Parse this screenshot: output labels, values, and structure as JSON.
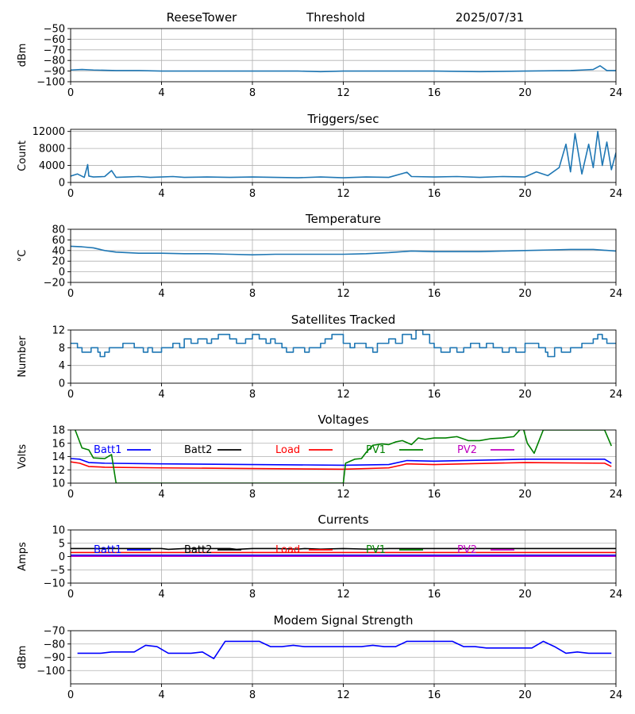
{
  "header": {
    "station": "ReeseTower",
    "title": "Threshold",
    "date": "2025/07/31"
  },
  "chart_data": [
    {
      "type": "line",
      "title": "",
      "ylabel": "dBm",
      "xlim": [
        0,
        24
      ],
      "ylim": [
        -100,
        -50
      ],
      "xticks": [
        "0",
        "4",
        "8",
        "12",
        "16",
        "20",
        "24"
      ],
      "yticks": [
        "-100",
        "-90",
        "-80",
        "-70",
        "-60",
        "-50"
      ],
      "grid": true,
      "series": [
        {
          "color": "#1f77b4",
          "x": [
            0,
            0.5,
            1,
            2,
            3,
            4,
            6,
            8,
            10,
            11,
            12,
            14,
            16,
            18,
            20,
            22,
            22.5,
            23,
            23.3,
            23.6,
            24
          ],
          "y": [
            -89,
            -88.5,
            -89,
            -89.5,
            -89.5,
            -90,
            -90,
            -90,
            -90,
            -90.5,
            -90,
            -90,
            -90,
            -90.5,
            -90,
            -89.5,
            -89,
            -88.5,
            -85,
            -89.5,
            -89.5
          ]
        }
      ]
    },
    {
      "type": "line",
      "title": "Triggers/sec",
      "ylabel": "Count",
      "xlim": [
        0,
        24
      ],
      "ylim": [
        0,
        12500
      ],
      "xticks": [
        "0",
        "4",
        "8",
        "12",
        "16",
        "20",
        "24"
      ],
      "yticks": [
        "0",
        "4000",
        "8000",
        "12000"
      ],
      "grid": true,
      "series": [
        {
          "color": "#1f77b4",
          "x": [
            0,
            0.3,
            0.6,
            0.75,
            0.8,
            1,
            1.5,
            1.8,
            2,
            2.5,
            3,
            3.5,
            4,
            4.5,
            5,
            6,
            7,
            8,
            9,
            10,
            11,
            12,
            13,
            14,
            14.8,
            15,
            16,
            17,
            18,
            19,
            20,
            20.5,
            21,
            21.5,
            21.8,
            22,
            22.2,
            22.5,
            22.8,
            23,
            23.2,
            23.4,
            23.6,
            23.8,
            24
          ],
          "y": [
            1500,
            2000,
            1200,
            4200,
            1500,
            1300,
            1400,
            2800,
            1200,
            1300,
            1400,
            1200,
            1300,
            1400,
            1200,
            1300,
            1200,
            1300,
            1200,
            1100,
            1300,
            1100,
            1300,
            1200,
            2400,
            1400,
            1300,
            1400,
            1200,
            1400,
            1300,
            2500,
            1600,
            3500,
            9000,
            2500,
            11500,
            2000,
            9000,
            3500,
            12000,
            4000,
            9500,
            3000,
            7000
          ]
        }
      ]
    },
    {
      "type": "line",
      "title": "Temperature",
      "ylabel": "°C",
      "xlim": [
        0,
        24
      ],
      "ylim": [
        -20,
        80
      ],
      "xticks": [
        "0",
        "4",
        "8",
        "12",
        "16",
        "20",
        "24"
      ],
      "yticks": [
        "-20",
        "0",
        "20",
        "40",
        "60",
        "80"
      ],
      "grid": true,
      "series": [
        {
          "color": "#1f77b4",
          "x": [
            0,
            0.5,
            1,
            1.5,
            2,
            3,
            4,
            5,
            6,
            7,
            8,
            9,
            10,
            11,
            12,
            13,
            14,
            15,
            16,
            17,
            18,
            19,
            20,
            21,
            22,
            23,
            24
          ],
          "y": [
            48,
            47,
            45,
            40,
            37,
            35,
            35,
            34,
            34,
            33,
            32,
            33,
            33,
            33,
            33,
            34,
            36,
            39,
            38,
            38,
            38,
            39,
            40,
            41,
            42,
            42,
            39
          ]
        }
      ]
    },
    {
      "type": "line",
      "title": "Satellites Tracked",
      "ylabel": "Number",
      "xlim": [
        0,
        24
      ],
      "ylim": [
        0,
        12
      ],
      "xticks": [
        "0",
        "4",
        "8",
        "12",
        "16",
        "20",
        "24"
      ],
      "yticks": [
        "0",
        "4",
        "8",
        "12"
      ],
      "grid": true,
      "series": [
        {
          "color": "#1f77b4",
          "step": true,
          "x": [
            0,
            0.3,
            0.5,
            0.9,
            1.2,
            1.3,
            1.5,
            1.7,
            2,
            2.3,
            2.5,
            2.8,
            3,
            3.2,
            3.4,
            3.6,
            4,
            4.5,
            4.8,
            5,
            5.3,
            5.6,
            6,
            6.2,
            6.5,
            7,
            7.3,
            7.7,
            8,
            8.3,
            8.6,
            8.8,
            9,
            9.3,
            9.5,
            9.8,
            10,
            10.3,
            10.5,
            11,
            11.2,
            11.5,
            12,
            12.3,
            12.5,
            13,
            13.3,
            13.5,
            14,
            14.3,
            14.6,
            15,
            15.2,
            15.5,
            15.8,
            16,
            16.3,
            16.7,
            17,
            17.3,
            17.6,
            18,
            18.3,
            18.6,
            19,
            19.3,
            19.6,
            20,
            20.4,
            20.6,
            20.9,
            21,
            21.3,
            21.6,
            22,
            22.5,
            23,
            23.2,
            23.4,
            23.6,
            24
          ],
          "y": [
            9,
            8,
            7,
            8,
            7,
            6,
            7,
            8,
            8,
            9,
            9,
            8,
            8,
            7,
            8,
            7,
            8,
            9,
            8,
            10,
            9,
            10,
            9,
            10,
            11,
            10,
            9,
            10,
            11,
            10,
            9,
            10,
            9,
            8,
            7,
            8,
            8,
            7,
            8,
            9,
            10,
            11,
            9,
            8,
            9,
            8,
            7,
            9,
            10,
            9,
            11,
            10,
            12,
            11,
            9,
            8,
            7,
            8,
            7,
            8,
            9,
            8,
            9,
            8,
            7,
            8,
            7,
            9,
            9,
            8,
            7,
            6,
            8,
            7,
            8,
            9,
            10,
            11,
            10,
            9,
            9
          ]
        }
      ]
    },
    {
      "type": "line",
      "title": "Voltages",
      "ylabel": "Volts",
      "xlim": [
        0,
        24
      ],
      "ylim": [
        10,
        18
      ],
      "xticks": [
        "0",
        "4",
        "8",
        "12",
        "16",
        "20",
        "24"
      ],
      "yticks": [
        "10",
        "12",
        "14",
        "16",
        "18"
      ],
      "grid": true,
      "legend": [
        "Batt1",
        "Batt2",
        "Load",
        "PV1",
        "PV2"
      ],
      "series": [
        {
          "name": "Batt1",
          "color": "#0000ff",
          "x": [
            0,
            0.4,
            0.8,
            1.5,
            4,
            8,
            12,
            14,
            14.8,
            16,
            20,
            23.5,
            23.8
          ],
          "y": [
            13.7,
            13.6,
            13.1,
            13,
            12.9,
            12.8,
            12.7,
            12.8,
            13.4,
            13.3,
            13.6,
            13.6,
            13
          ]
        },
        {
          "name": "Batt2",
          "color": "#000000",
          "x": [],
          "y": []
        },
        {
          "name": "Load",
          "color": "#ff0000",
          "x": [
            0,
            0.4,
            0.8,
            1.5,
            4,
            8,
            12,
            14,
            14.8,
            16,
            20,
            23.5,
            23.8
          ],
          "y": [
            13.2,
            13,
            12.5,
            12.4,
            12.3,
            12.2,
            12.1,
            12.3,
            12.9,
            12.8,
            13.1,
            13,
            12.5
          ]
        },
        {
          "name": "PV1",
          "color": "#008000",
          "x": [
            0.2,
            0.5,
            0.8,
            1,
            1.5,
            1.8,
            2,
            12,
            12.1,
            12.5,
            12.8,
            13,
            13.3,
            13.7,
            14,
            14.3,
            14.6,
            15,
            15.3,
            15.6,
            16,
            16.5,
            17,
            17.5,
            18,
            18.5,
            19,
            19.5,
            19.9,
            20.1,
            20.4,
            20.8,
            23.5,
            23.8
          ],
          "y": [
            18,
            15.3,
            15,
            13.8,
            13.7,
            14.3,
            10,
            10,
            13,
            13.6,
            13.7,
            14.6,
            15.7,
            15.9,
            15.8,
            16.2,
            16.4,
            15.8,
            16.8,
            16.6,
            16.8,
            16.8,
            17,
            16.4,
            16.4,
            16.7,
            16.8,
            17,
            18.5,
            16,
            14.5,
            18,
            18,
            15.6
          ]
        },
        {
          "name": "PV2",
          "color": "#bf00bf",
          "x": [],
          "y": []
        }
      ]
    },
    {
      "type": "line",
      "title": "Currents",
      "ylabel": "Amps",
      "xlim": [
        0,
        24
      ],
      "ylim": [
        -10,
        10
      ],
      "xticks": [
        "0",
        "4",
        "8",
        "12",
        "16",
        "20",
        "24"
      ],
      "yticks": [
        "-10",
        "-5",
        "0",
        "5",
        "10"
      ],
      "grid": true,
      "legend": [
        "Batt1",
        "Batt2",
        "Load",
        "PV1",
        "PV2"
      ],
      "series": [
        {
          "name": "Batt1",
          "color": "#0000ff",
          "x": [
            0,
            24
          ],
          "y": [
            0.5,
            0.5
          ]
        },
        {
          "name": "Batt2",
          "color": "#000000",
          "x": [
            0,
            3,
            4,
            4.3,
            5,
            6,
            7,
            7.3,
            8,
            9,
            10,
            10.3,
            11,
            12,
            13,
            14,
            15,
            24
          ],
          "y": [
            3,
            3,
            3,
            2.7,
            3,
            3,
            3,
            2.7,
            3,
            3,
            2.8,
            3,
            2.8,
            3,
            2.8,
            3,
            3,
            3
          ]
        },
        {
          "name": "Load",
          "color": "#ff0000",
          "x": [
            0,
            24
          ],
          "y": [
            1.5,
            1.5
          ]
        },
        {
          "name": "PV1",
          "color": "#008000",
          "x": [],
          "y": []
        },
        {
          "name": "PV2",
          "color": "#bf00bf",
          "x": [
            0,
            24
          ],
          "y": [
            0.1,
            0.1
          ]
        }
      ]
    },
    {
      "type": "line",
      "title": "Modem Signal Strength",
      "ylabel": "dBm",
      "xlim": [
        0,
        24
      ],
      "ylim": [
        -110,
        -70
      ],
      "xticks": [
        "0",
        "4",
        "8",
        "12",
        "16",
        "20",
        "24"
      ],
      "yticks": [
        "-100",
        "-90",
        "-80",
        "-70"
      ],
      "grid": true,
      "series": [
        {
          "color": "#0000ff",
          "x": [
            0.3,
            1.3,
            1.8,
            2.8,
            3.3,
            3.8,
            4.3,
            5.3,
            5.8,
            6.3,
            6.8,
            7.8,
            8.3,
            8.8,
            9.3,
            9.8,
            10.3,
            11.3,
            11.8,
            12.8,
            13.3,
            13.8,
            14.3,
            14.8,
            15.8,
            16.8,
            17.3,
            17.8,
            18.3,
            19.3,
            19.8,
            20.3,
            20.8,
            21.3,
            21.8,
            22.3,
            22.8,
            23.3,
            23.8
          ],
          "y": [
            -87,
            -87,
            -86,
            -86,
            -81,
            -82,
            -87,
            -87,
            -86,
            -91,
            -78,
            -78,
            -78,
            -82,
            -82,
            -81,
            -82,
            -82,
            -82,
            -82,
            -81,
            -82,
            -82,
            -78,
            -78,
            -78,
            -82,
            -82,
            -83,
            -83,
            -83,
            -83,
            -78,
            -82,
            -87,
            -86,
            -87,
            -87,
            -87
          ]
        }
      ]
    }
  ]
}
